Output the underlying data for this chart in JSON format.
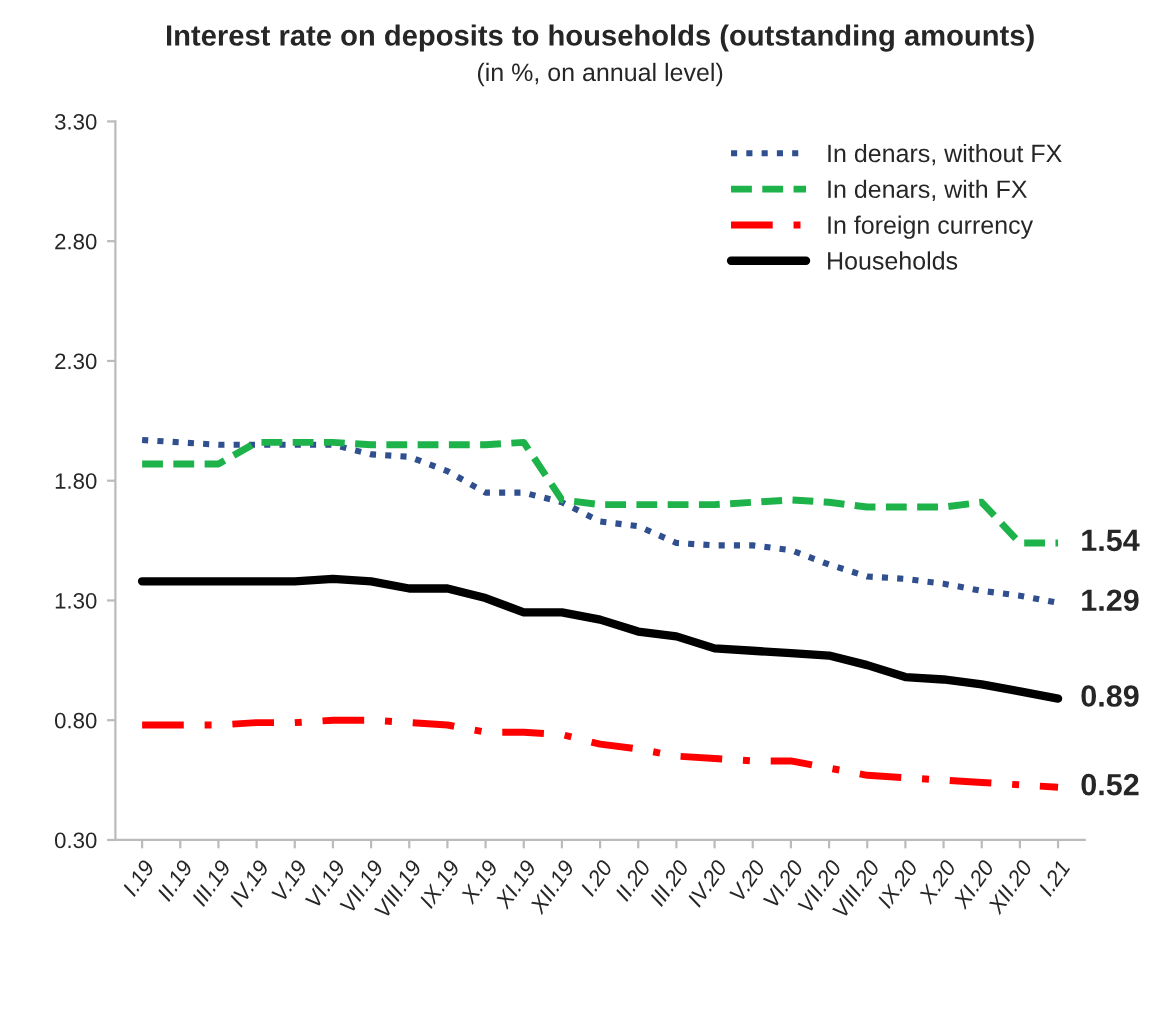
{
  "chart_data": {
    "type": "line",
    "title": "Interest rate on deposits to households (outstanding amounts)",
    "subtitle": "(in %, on annual level)",
    "categories": [
      "I.19",
      "II.19",
      "III.19",
      "IV.19",
      "V.19",
      "VI.19",
      "VII.19",
      "VIII.19",
      "IX.19",
      "X.19",
      "XI.19",
      "XII.19",
      "I.20",
      "II.20",
      "III.20",
      "IV.20",
      "V.20",
      "VI.20",
      "VII.20",
      "VIII.20",
      "IX.20",
      "X.20",
      "XI.20",
      "XII.20",
      "I.21"
    ],
    "series": [
      {
        "name": "In denars, without FX",
        "color": "#2f4f8f",
        "line_style": "dotted",
        "values": [
          1.97,
          1.96,
          1.95,
          1.95,
          1.95,
          1.95,
          1.91,
          1.9,
          1.84,
          1.75,
          1.75,
          1.71,
          1.63,
          1.61,
          1.54,
          1.53,
          1.53,
          1.51,
          1.45,
          1.4,
          1.39,
          1.37,
          1.34,
          1.32,
          1.29
        ],
        "value_labels": [
          null,
          null,
          null,
          null,
          null,
          null,
          null,
          null,
          null,
          null,
          null,
          null,
          null,
          null,
          null,
          null,
          null,
          null,
          null,
          null,
          null,
          null,
          null,
          null,
          "1.29"
        ]
      },
      {
        "name": "In denars, with FX",
        "color": "#1db34a",
        "line_style": "dashed",
        "values": [
          1.87,
          1.87,
          1.87,
          1.96,
          1.96,
          1.96,
          1.95,
          1.95,
          1.95,
          1.95,
          1.96,
          1.72,
          1.7,
          1.7,
          1.7,
          1.7,
          1.71,
          1.72,
          1.71,
          1.69,
          1.69,
          1.69,
          1.71,
          1.54,
          1.54
        ],
        "value_labels": [
          null,
          null,
          null,
          null,
          null,
          null,
          null,
          null,
          null,
          null,
          null,
          null,
          null,
          null,
          null,
          null,
          null,
          null,
          null,
          null,
          null,
          null,
          null,
          null,
          "1.54"
        ]
      },
      {
        "name": "In foreign currency",
        "color": "#ff0000",
        "line_style": "dashdot",
        "values": [
          0.78,
          0.78,
          0.78,
          0.79,
          0.79,
          0.8,
          0.8,
          0.79,
          0.78,
          0.75,
          0.75,
          0.74,
          0.7,
          0.68,
          0.65,
          0.64,
          0.63,
          0.63,
          0.6,
          0.57,
          0.56,
          0.55,
          0.54,
          0.53,
          0.52
        ],
        "value_labels": [
          null,
          null,
          null,
          null,
          null,
          null,
          null,
          null,
          null,
          null,
          null,
          null,
          null,
          null,
          null,
          null,
          null,
          null,
          null,
          null,
          null,
          null,
          null,
          null,
          "0.52"
        ]
      },
      {
        "name": "Households",
        "color": "#000000",
        "line_style": "solid",
        "values": [
          1.38,
          1.38,
          1.38,
          1.38,
          1.38,
          1.39,
          1.38,
          1.35,
          1.35,
          1.31,
          1.25,
          1.25,
          1.22,
          1.17,
          1.15,
          1.1,
          1.09,
          1.08,
          1.07,
          1.03,
          0.98,
          0.97,
          0.95,
          0.92,
          0.89
        ],
        "value_labels": [
          null,
          null,
          null,
          null,
          null,
          null,
          null,
          null,
          null,
          null,
          null,
          null,
          null,
          null,
          null,
          null,
          null,
          null,
          null,
          null,
          null,
          null,
          null,
          null,
          "0.89"
        ]
      }
    ],
    "ylim": [
      0.3,
      3.3
    ],
    "yticks": [
      {
        "value": 0.3,
        "label": "0.30"
      },
      {
        "value": 0.8,
        "label": "0.80"
      },
      {
        "value": 1.3,
        "label": "1.30"
      },
      {
        "value": 1.8,
        "label": "1.80"
      },
      {
        "value": 2.3,
        "label": "2.30"
      },
      {
        "value": 2.8,
        "label": "2.80"
      },
      {
        "value": 3.3,
        "label": "3.30"
      }
    ],
    "grid": false,
    "legend": "top right",
    "marker": "none"
  }
}
